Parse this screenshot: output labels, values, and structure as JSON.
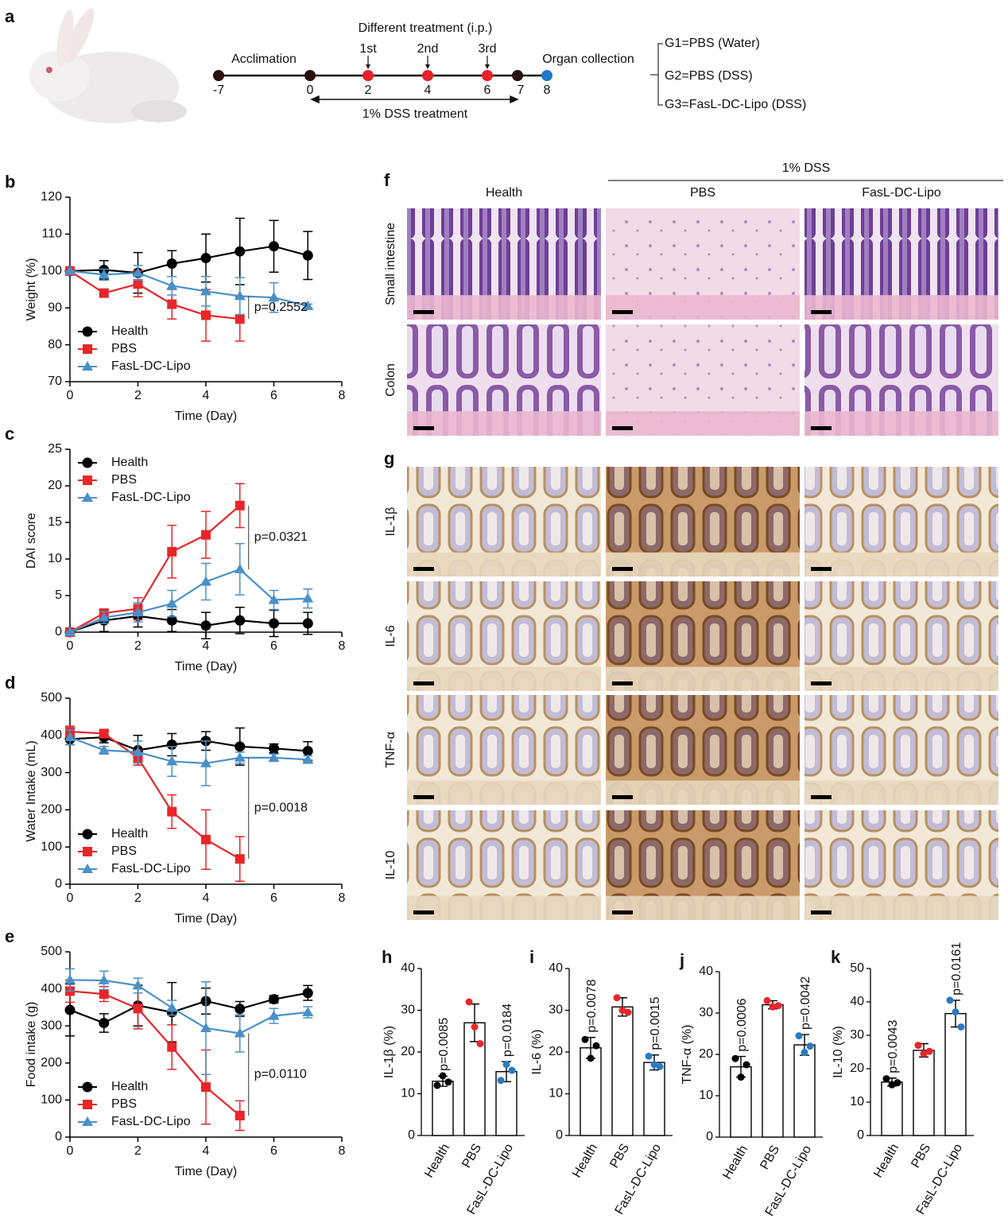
{
  "timeline": {
    "label": "a",
    "acclimation": "Acclimation",
    "treatment_title": "Different treatment (i.p.)",
    "treatments": [
      "1st",
      "2nd",
      "3rd"
    ],
    "collection": "Organ collection",
    "dss_label": "1% DSS treatment",
    "days": [
      -7,
      0,
      2,
      4,
      6,
      7,
      8
    ],
    "day_colors": [
      "#2a1010",
      "#2a1010",
      "#e8202a",
      "#e8202a",
      "#e8202a",
      "#2a1010",
      "#1f78c8"
    ],
    "groups": [
      {
        "name": "G1=PBS (Water)",
        "color": "#111111"
      },
      {
        "name": "G2=PBS (DSS)",
        "color": "#e8202a"
      },
      {
        "name": "G3=FasL-DC-Lipo (DSS)",
        "color": "#2a7ac0"
      }
    ]
  },
  "histology": {
    "group_header": "1% DSS",
    "columns": [
      "Health",
      "PBS",
      "FasL-DC-Lipo"
    ],
    "f": {
      "label": "f",
      "rows": [
        "Small intestine",
        "Colon"
      ]
    },
    "g": {
      "label": "g",
      "rows": [
        "IL-1β",
        "IL-6",
        "TNF-α",
        "IL-10"
      ]
    }
  },
  "chart_data": [
    {
      "type": "line",
      "label": "b",
      "xlabel": "Time (Day)",
      "ylabel": "Weight (%)",
      "xlim": [
        0,
        8
      ],
      "xticks": [
        0,
        2,
        4,
        6,
        8
      ],
      "ylim": [
        70,
        120
      ],
      "yticks": [
        70,
        80,
        90,
        100,
        110,
        120
      ],
      "legend": "lower left",
      "annotation": "p=0.2552",
      "x": [
        0,
        1,
        2,
        3,
        4,
        5,
        6,
        7
      ],
      "series": [
        {
          "name": "Health",
          "color": "#000000",
          "marker": "circle",
          "values": [
            100,
            100.3,
            99.5,
            102,
            103.5,
            105.3,
            106.7,
            104.2
          ],
          "errors": [
            0,
            2.5,
            5.5,
            3.5,
            6.5,
            9,
            7,
            6.5
          ]
        },
        {
          "name": "PBS",
          "color": "#e8262a",
          "marker": "square",
          "values": [
            100,
            94,
            96.5,
            91,
            88,
            87,
            null,
            null
          ],
          "errors": [
            0,
            1,
            3.5,
            4,
            7,
            6,
            null,
            null
          ]
        },
        {
          "name": "FasL-DC-Lipo",
          "color": "#4a90c8",
          "marker": "triangle",
          "values": [
            100,
            99,
            99.5,
            96,
            94.5,
            93.2,
            92.8,
            90.5
          ],
          "errors": [
            0,
            1.5,
            2,
            2.5,
            4,
            5,
            4,
            0.5
          ]
        }
      ]
    },
    {
      "type": "line",
      "label": "c",
      "xlabel": "Time (Day)",
      "ylabel": "DAI score",
      "xlim": [
        0,
        8
      ],
      "xticks": [
        0,
        2,
        4,
        6,
        8
      ],
      "ylim": [
        0,
        25
      ],
      "yticks": [
        0,
        5,
        10,
        15,
        20,
        25
      ],
      "legend": "upper left",
      "annotation": "p=0.0321",
      "x": [
        0,
        1,
        2,
        3,
        4,
        5,
        6,
        7
      ],
      "series": [
        {
          "name": "Health",
          "color": "#000000",
          "marker": "circle",
          "values": [
            0,
            1.6,
            2.2,
            1.6,
            0.9,
            1.6,
            1.2,
            1.2
          ],
          "errors": [
            0,
            1.5,
            1.5,
            1.5,
            1.8,
            1.8,
            1.8,
            1.5
          ]
        },
        {
          "name": "PBS",
          "color": "#e8262a",
          "marker": "square",
          "values": [
            0,
            2.6,
            3.2,
            11,
            13.3,
            17.3,
            null,
            null
          ],
          "errors": [
            0,
            0.5,
            1.5,
            3.6,
            3.2,
            3,
            null,
            null
          ]
        },
        {
          "name": "FasL-DC-Lipo",
          "color": "#4a90c8",
          "marker": "triangle",
          "values": [
            0,
            2,
            2.7,
            3.9,
            6.9,
            8.6,
            4.4,
            4.6
          ],
          "errors": [
            0,
            0.8,
            1.3,
            1.8,
            2.5,
            3.5,
            1.3,
            1.3
          ]
        }
      ]
    },
    {
      "type": "line",
      "label": "d",
      "xlabel": "Time (Day)",
      "ylabel": "Water Intake  (mL)",
      "xlim": [
        0,
        8
      ],
      "xticks": [
        0,
        2,
        4,
        6,
        8
      ],
      "ylim": [
        0,
        500
      ],
      "yticks": [
        0,
        100,
        200,
        300,
        400,
        500
      ],
      "legend": "lower left",
      "annotation": "p=0.0018",
      "x": [
        0,
        1,
        2,
        3,
        4,
        5,
        6,
        7
      ],
      "series": [
        {
          "name": "Health",
          "color": "#000000",
          "marker": "circle",
          "values": [
            390,
            395,
            360,
            375,
            385,
            370,
            365,
            358
          ],
          "errors": [
            15,
            15,
            40,
            30,
            25,
            50,
            12,
            25
          ]
        },
        {
          "name": "PBS",
          "color": "#e8262a",
          "marker": "square",
          "values": [
            410,
            405,
            340,
            195,
            120,
            68,
            null,
            null
          ],
          "errors": [
            15,
            8,
            20,
            45,
            80,
            60,
            null,
            null
          ]
        },
        {
          "name": "FasL-DC-Lipo",
          "color": "#4a90c8",
          "marker": "triangle",
          "values": [
            395,
            360,
            355,
            330,
            325,
            340,
            340,
            335
          ],
          "errors": [
            20,
            10,
            30,
            40,
            60,
            15,
            10,
            10
          ]
        }
      ]
    },
    {
      "type": "line",
      "label": "e",
      "xlabel": "Time (Day)",
      "ylabel": "Food intake (g)",
      "xlim": [
        0,
        8
      ],
      "xticks": [
        0,
        2,
        4,
        6,
        8
      ],
      "ylim": [
        0,
        500
      ],
      "yticks": [
        0,
        100,
        200,
        300,
        400,
        500
      ],
      "legend": "lower left",
      "annotation": "p=0.0110",
      "x": [
        0,
        1,
        2,
        3,
        4,
        5,
        6,
        7
      ],
      "series": [
        {
          "name": "Health",
          "color": "#000000",
          "marker": "circle",
          "values": [
            343,
            308,
            355,
            337,
            367,
            346,
            372,
            389
          ],
          "errors": [
            70,
            25,
            55,
            80,
            35,
            20,
            10,
            20
          ]
        },
        {
          "name": "PBS",
          "color": "#e8262a",
          "marker": "square",
          "values": [
            394,
            386,
            347,
            243,
            135,
            58,
            null,
            null
          ],
          "errors": [
            30,
            20,
            55,
            60,
            100,
            40,
            null,
            null
          ]
        },
        {
          "name": "FasL-DC-Lipo",
          "color": "#4a90c8",
          "marker": "triangle",
          "values": [
            424,
            423,
            409,
            349,
            294,
            280,
            327,
            337
          ],
          "errors": [
            30,
            25,
            20,
            20,
            125,
            50,
            20,
            15
          ]
        }
      ]
    },
    {
      "type": "bar",
      "label": "h",
      "ylabel": "IL-1β (%)",
      "ylim": [
        0,
        40
      ],
      "yticks": [
        0,
        10,
        20,
        30,
        40
      ],
      "categories": [
        "Health",
        "PBS",
        "FasL-DC-Lipo"
      ],
      "point_colors": [
        "#000000",
        "#e8262a",
        "#2a7ac0"
      ],
      "values": [
        13,
        27,
        15.3
      ],
      "errors": [
        1.2,
        4.5,
        2.4
      ],
      "points": [
        [
          12,
          14.3,
          12.8
        ],
        [
          32,
          26,
          22
        ],
        [
          13.2,
          17,
          15.6
        ]
      ],
      "annotations": [
        "p=0.0085",
        null,
        "p=0.0184"
      ]
    },
    {
      "type": "bar",
      "label": "i",
      "ylabel": "IL-6 (%)",
      "ylim": [
        0,
        40
      ],
      "yticks": [
        0,
        10,
        20,
        30,
        40
      ],
      "categories": [
        "Health",
        "PBS",
        "FasL-DC-Lipo"
      ],
      "point_colors": [
        "#000000",
        "#e8262a",
        "#2a7ac0"
      ],
      "values": [
        21,
        30.8,
        17.5
      ],
      "errors": [
        2.5,
        2.2,
        1.8
      ],
      "points": [
        [
          23,
          18.5,
          21.5
        ],
        [
          33,
          30,
          29.5
        ],
        [
          19,
          17,
          16.5
        ]
      ],
      "annotations": [
        "p=0.0078",
        null,
        "p=0.0015"
      ]
    },
    {
      "type": "bar",
      "label": "j",
      "ylabel": "TNF-α (%)",
      "ylim": [
        0,
        40
      ],
      "yticks": [
        0,
        10,
        20,
        30,
        40
      ],
      "categories": [
        "Health",
        "PBS",
        "FasL-DC-Lipo"
      ],
      "point_colors": [
        "#000000",
        "#e8262a",
        "#2a7ac0"
      ],
      "values": [
        17,
        32,
        22.3
      ],
      "errors": [
        2.5,
        1,
        2.5
      ],
      "points": [
        [
          19,
          14.5,
          17.5
        ],
        [
          33,
          31.5,
          31.8
        ],
        [
          24.5,
          20.5,
          22
        ]
      ],
      "annotations": [
        "p=0.0006",
        null,
        "p=0.0042"
      ]
    },
    {
      "type": "bar",
      "label": "k",
      "ylabel": "IL-10  (%)",
      "ylim": [
        0,
        50
      ],
      "yticks": [
        0,
        10,
        20,
        30,
        40,
        50
      ],
      "categories": [
        "Health",
        "PBS",
        "FasL-DC-Lipo"
      ],
      "point_colors": [
        "#000000",
        "#e8262a",
        "#2a7ac0"
      ],
      "values": [
        16,
        25.5,
        36.5
      ],
      "errors": [
        1.2,
        2,
        4
      ],
      "points": [
        [
          17,
          15.2,
          15.8
        ],
        [
          27,
          24.5,
          25.2
        ],
        [
          40.5,
          37,
          32.5
        ]
      ],
      "annotations": [
        "p=0.0043",
        null,
        "p=0.0161"
      ]
    }
  ]
}
